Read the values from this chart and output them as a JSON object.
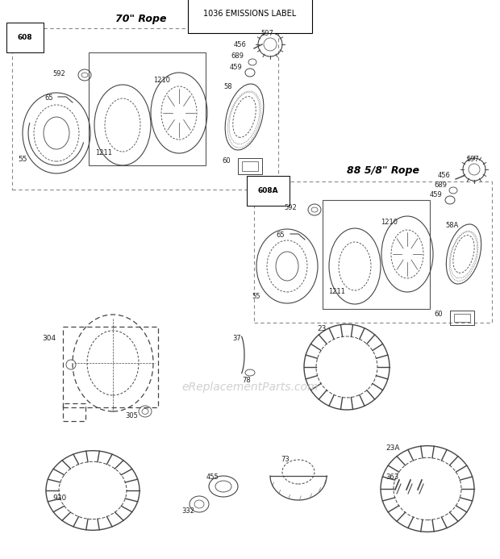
{
  "title": "1036 EMISSIONS LABEL",
  "bg_color": "#ffffff",
  "lc": "#444444",
  "tc": "#222222",
  "fig_width": 6.2,
  "fig_height": 6.93,
  "watermark": "eReplacementParts.com",
  "s1_title": "70\" Rope",
  "s1_label": "608",
  "s2_title": "88 5/8\" Rope",
  "s2_label": "608A"
}
